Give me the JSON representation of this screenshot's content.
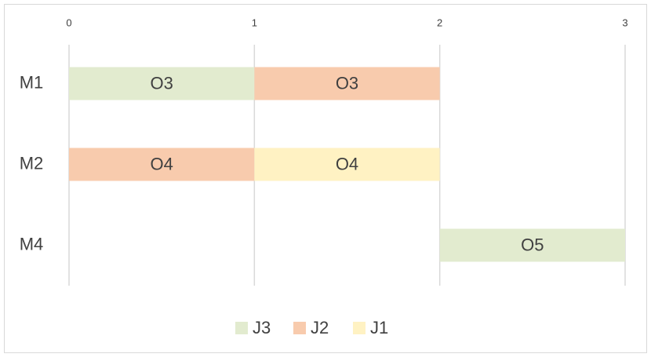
{
  "chart_data": {
    "type": "gantt",
    "categories": [
      "M1",
      "M2",
      "M4"
    ],
    "xlim": [
      0,
      3
    ],
    "xticks": [
      0,
      1,
      2,
      3
    ],
    "grid": true,
    "legend": "bottom",
    "series": [
      {
        "name": "J3",
        "color": "#e2ebcf",
        "values": [
          [
            0,
            1
          ],
          null,
          [
            2,
            3
          ]
        ],
        "labels": [
          "O3",
          null,
          "O5"
        ]
      },
      {
        "name": "J2",
        "color": "#f8cbad",
        "values": [
          [
            1,
            2
          ],
          [
            0,
            1
          ],
          null
        ],
        "labels": [
          "O3",
          "O4",
          null
        ]
      },
      {
        "name": "J1",
        "color": "#fff2c3",
        "values": [
          null,
          [
            1,
            2
          ],
          null
        ],
        "labels": [
          null,
          "O4",
          null
        ]
      }
    ]
  }
}
